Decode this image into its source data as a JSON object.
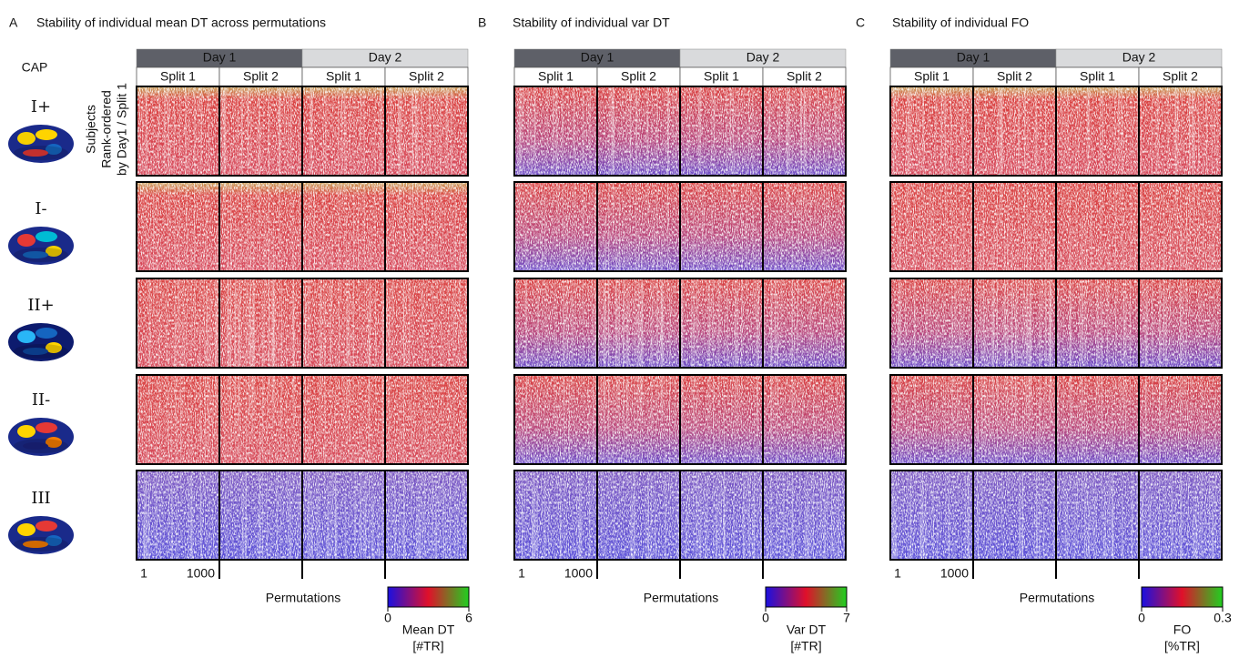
{
  "caps": {
    "header": "CAP",
    "labels": [
      "I+",
      "I-",
      "II+",
      "II-",
      "III"
    ]
  },
  "y_label": [
    "Subjects",
    "Rank-ordered",
    "by Day1 / Split 1"
  ],
  "panels": [
    {
      "letter": "A",
      "title": "Stability of individual mean DT across permutations",
      "days": [
        "Day 1",
        "Day 2"
      ],
      "splits": [
        "Split 1",
        "Split 2",
        "Split 1",
        "Split 2"
      ],
      "x_ticks": [
        "1",
        "1000"
      ],
      "x_label": "Permutations",
      "colorbar": {
        "ticks": [
          0,
          6
        ],
        "label": [
          "Mean DT",
          "[#TR]"
        ]
      }
    },
    {
      "letter": "B",
      "title": "Stability of individual var DT",
      "days": [
        "Day 1",
        "Day 2"
      ],
      "splits": [
        "Split 1",
        "Split 2",
        "Split 1",
        "Split 2"
      ],
      "x_ticks": [
        "1",
        "1000"
      ],
      "x_label": "Permutations",
      "colorbar": {
        "ticks": [
          0,
          7
        ],
        "label": [
          "Var DT",
          "[#TR]"
        ]
      }
    },
    {
      "letter": "C",
      "title": "Stability of individual FO",
      "days": [
        "Day 1",
        "Day 2"
      ],
      "splits": [
        "Split 1",
        "Split 2",
        "Split 1",
        "Split 2"
      ],
      "x_ticks": [
        "1",
        "1000"
      ],
      "x_label": "Permutations",
      "colorbar": {
        "ticks": [
          0,
          0.3
        ],
        "label": [
          "FO",
          "[%TR]"
        ]
      }
    }
  ]
}
